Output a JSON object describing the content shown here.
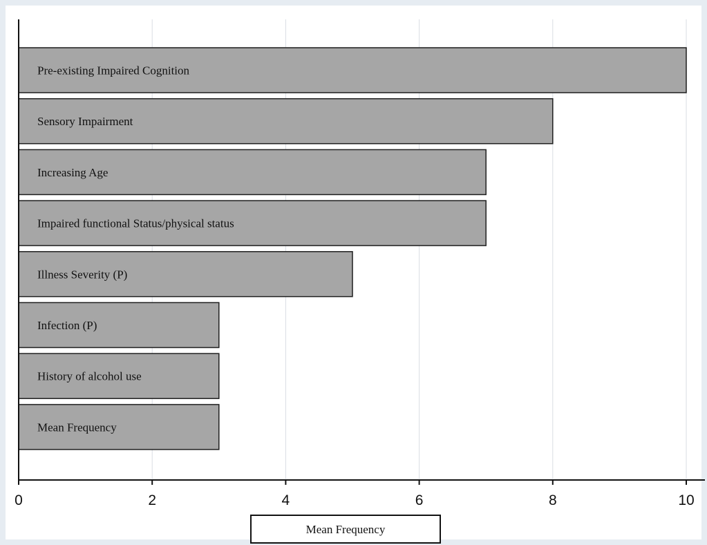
{
  "chart_data": {
    "type": "bar",
    "orientation": "horizontal",
    "categories": [
      "Pre-existing Impaired Cognition",
      "Sensory Impairment",
      "Increasing Age",
      "Impaired functional Status/physical status",
      "Illness Severity (P)",
      "Infection (P)",
      "History of alcohol use",
      "Mean Frequency"
    ],
    "values": [
      10,
      8,
      7,
      7,
      5,
      3,
      3,
      3
    ],
    "xlim": [
      0,
      10
    ],
    "xticks": [
      "0",
      "2",
      "4",
      "6",
      "8",
      "10"
    ],
    "legend": "Mean Frequency",
    "legend_position": "bottom-center",
    "grid": true,
    "colors": {
      "bar": "#a6a6a6",
      "border": "#e6ecf2",
      "grid": "#d9dde3"
    }
  }
}
